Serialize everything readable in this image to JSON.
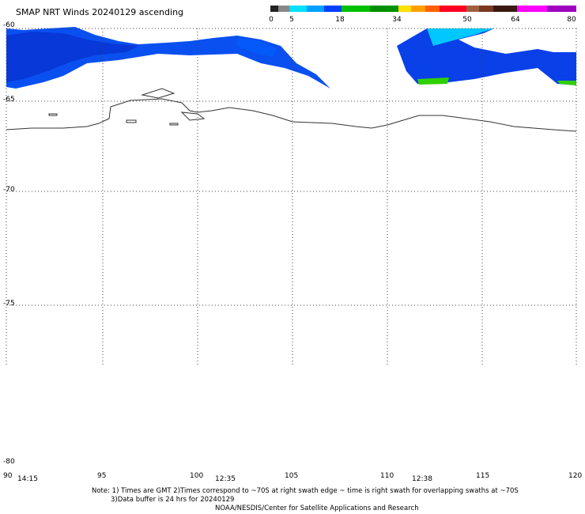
{
  "title": "SMAP NRT Winds 20240129 ascending",
  "color_scale": {
    "labels": [
      "0",
      "5",
      "18",
      "34",
      "50",
      "64",
      "80"
    ],
    "segments": [
      {
        "from": 0,
        "to": 5,
        "color": "#555555"
      },
      {
        "from": 5,
        "to": 18,
        "color": "#1e90ff"
      },
      {
        "from": 18,
        "to": 34,
        "color": "#00b000"
      },
      {
        "from": 34,
        "to": 50,
        "color": "#ff6000"
      },
      {
        "from": 50,
        "to": 64,
        "color": "#8b4513"
      },
      {
        "from": 64,
        "to": 80,
        "color": "#c000c0"
      }
    ]
  },
  "lat_labels": [
    "-60",
    "-65",
    "-70",
    "-75",
    "-80"
  ],
  "lon_labels": [
    "90",
    "95",
    "100",
    "105",
    "110",
    "115",
    "120"
  ],
  "times": [
    "14:15",
    "12:35",
    "12:38"
  ],
  "notes": [
    "Note: 1) Times are GMT 2)Times correspond to ~70S at right swath edge ~ time is right swath for overlapping swaths at ~70S",
    "3)Data buffer is 24 hrs for 20240129",
    "NOAA/NESDIS/Center for Satellite Applications and Research"
  ]
}
